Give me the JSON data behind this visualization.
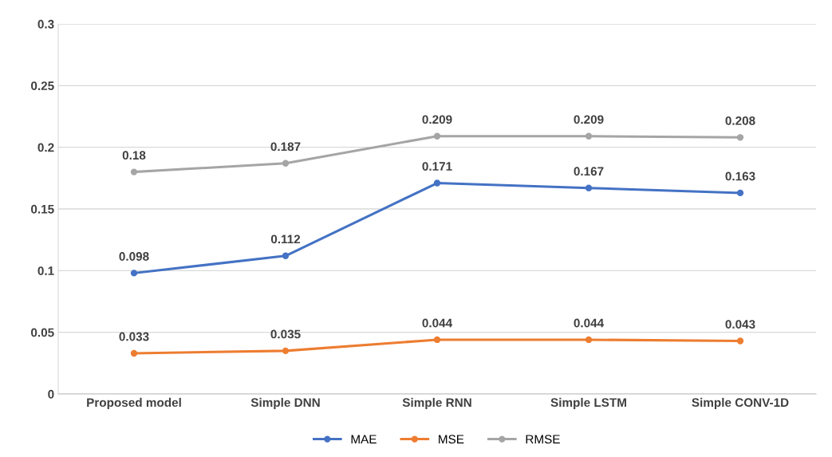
{
  "chart_data": {
    "type": "line",
    "categories": [
      "Proposed model",
      "Simple DNN",
      "Simple RNN",
      "Simple LSTM",
      "Simple CONV-1D"
    ],
    "series": [
      {
        "name": "MAE",
        "color": "#4472c4",
        "values": [
          0.098,
          0.112,
          0.171,
          0.167,
          0.163
        ]
      },
      {
        "name": "MSE",
        "color": "#ed7d31",
        "values": [
          0.033,
          0.035,
          0.044,
          0.044,
          0.043
        ]
      },
      {
        "name": "RMSE",
        "color": "#a5a5a5",
        "values": [
          0.18,
          0.187,
          0.209,
          0.209,
          0.208
        ]
      }
    ],
    "ylim": [
      0,
      0.3
    ],
    "yticks": [
      0,
      0.05,
      0.1,
      0.15,
      0.2,
      0.25,
      0.3
    ],
    "grid": "y",
    "legend": "bottom",
    "marker": "circle",
    "line_style": "solid",
    "data_labels": true
  }
}
